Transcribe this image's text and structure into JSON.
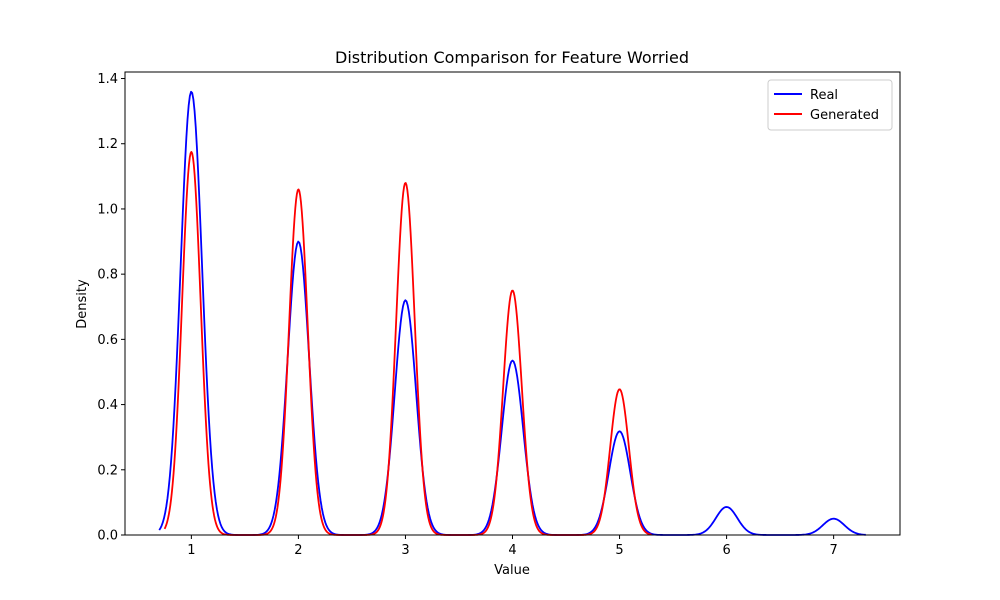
{
  "chart_data": {
    "type": "line",
    "title": "Distribution Comparison for Feature Worried",
    "xlabel": "Value",
    "ylabel": "Density",
    "xlim": [
      0.38,
      7.62
    ],
    "ylim": [
      0,
      1.42
    ],
    "xticks": [
      1,
      2,
      3,
      4,
      5,
      6,
      7
    ],
    "yticks": [
      0.0,
      0.2,
      0.4,
      0.6,
      0.8,
      1.0,
      1.2,
      1.4
    ],
    "grid": false,
    "legend_position": "top-right",
    "series": [
      {
        "name": "Real",
        "color": "#0000ff",
        "x_range": [
          0.7,
          7.3
        ],
        "peaks": [
          {
            "x": 1,
            "y": 1.36
          },
          {
            "x": 2,
            "y": 0.9
          },
          {
            "x": 3,
            "y": 0.72
          },
          {
            "x": 4,
            "y": 0.535
          },
          {
            "x": 5,
            "y": 0.318
          },
          {
            "x": 6,
            "y": 0.086
          },
          {
            "x": 7,
            "y": 0.05
          }
        ],
        "sigma": 0.1
      },
      {
        "name": "Generated",
        "color": "#ff0000",
        "x_range": [
          0.75,
          5.3
        ],
        "peaks": [
          {
            "x": 1,
            "y": 1.175
          },
          {
            "x": 2,
            "y": 1.06
          },
          {
            "x": 3,
            "y": 1.08
          },
          {
            "x": 4,
            "y": 0.75
          },
          {
            "x": 5,
            "y": 0.447
          }
        ],
        "sigma": 0.087
      }
    ]
  }
}
